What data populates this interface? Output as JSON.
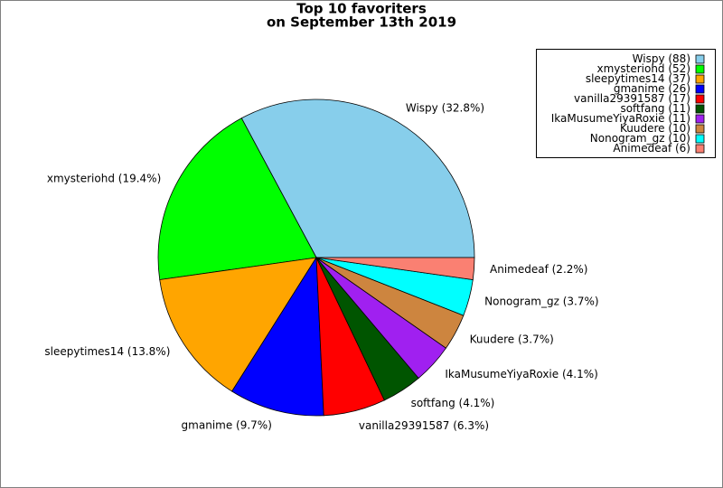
{
  "chart_data": {
    "type": "pie",
    "title": [
      "Top 10 favoriters",
      "on September 13th 2019"
    ],
    "categories": [
      "Wispy",
      "xmysteriohd",
      "sleepytimes14",
      "gmanime",
      "vanilla29391587",
      "softfang",
      "IkaMusumeYiyaRoxie",
      "Kuudere",
      "Nonogram_gz",
      "Animedeaf"
    ],
    "values": [
      88,
      52,
      37,
      26,
      17,
      11,
      11,
      10,
      10,
      6
    ],
    "value_labels": [
      "Wispy (32.8%)",
      "xmysteriohd (19.4%)",
      "sleepytimes14 (13.8%)",
      "gmanime (9.7%)",
      "vanilla29391587 (6.3%)",
      "softfang (4.1%)",
      "IkaMusumeYiyaRoxie (4.1%)",
      "Kuudere (3.7%)",
      "Nonogram_gz (3.7%)",
      "Animedeaf (2.2%)"
    ],
    "colors": [
      "#87ceeb",
      "#00ff00",
      "#ffa500",
      "#0000ff",
      "#ff0000",
      "#005500",
      "#a020f0",
      "#cd853f",
      "#00ffff",
      "#fa8072"
    ],
    "legend": {
      "position": "upper right",
      "labels": [
        "Wispy (88)",
        "xmysteriohd (52)",
        "sleepytimes14 (37)",
        "gmanime (26)",
        "vanilla29391587 (17)",
        "softfang (11)",
        "IkaMusumeYiyaRoxie (11)",
        "Kuudere (10)",
        "Nonogram_gz (10)",
        "Animedeaf (6)"
      ]
    }
  }
}
